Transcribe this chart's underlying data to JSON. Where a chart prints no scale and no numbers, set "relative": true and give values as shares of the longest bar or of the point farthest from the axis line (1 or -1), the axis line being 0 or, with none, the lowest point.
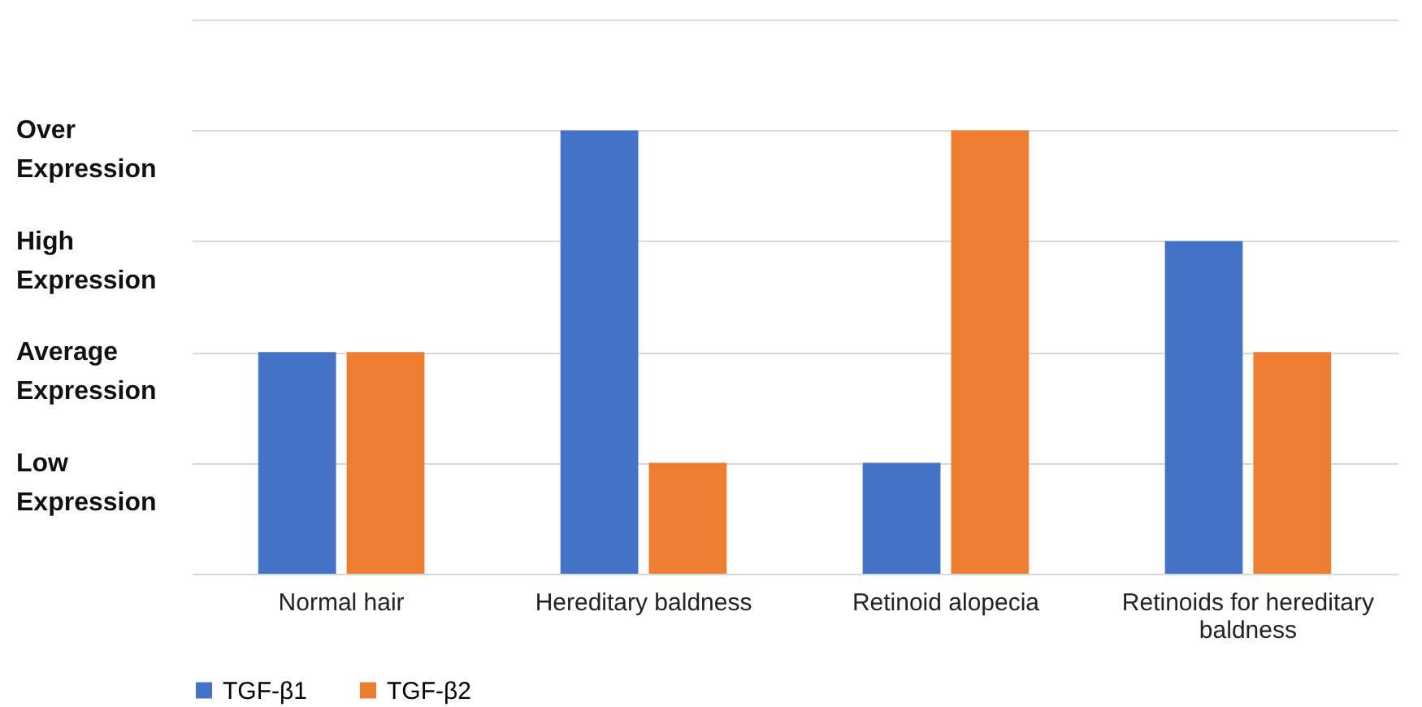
{
  "chart_data": {
    "type": "bar",
    "categories": [
      "Normal hair",
      "Hereditary baldness",
      "Retinoid alopecia",
      "Retinoids for hereditary baldness"
    ],
    "series": [
      {
        "name": "TGF-β1",
        "color": "#4472c4",
        "values": [
          0.5,
          1,
          0.25,
          0.75
        ]
      },
      {
        "name": "TGF-β2",
        "color": "#ed7d31",
        "values": [
          0.5,
          0.25,
          1,
          0.5
        ]
      }
    ],
    "relative": true,
    "annotations": [
      "Low Expression",
      "Average Expression",
      "High Expression",
      "Over Expression"
    ],
    "grid": "y",
    "legend": "bottom"
  }
}
